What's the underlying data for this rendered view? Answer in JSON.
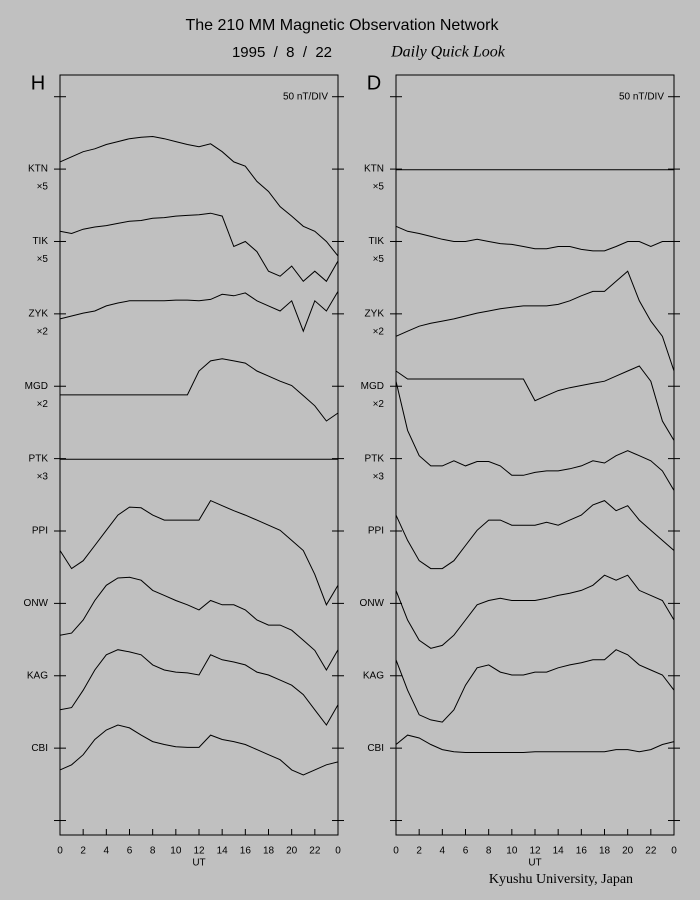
{
  "title": "The 210 MM Magnetic Observation Network",
  "date": "1995  /  8  /  22",
  "subtitle": "Daily Quick Look",
  "credit": "Kyushu University, Japan",
  "chart_data": [
    {
      "type": "line",
      "title": "H",
      "annotation": "50 nT/DIV",
      "xlabel": "UT",
      "color": "#000000",
      "x": [
        0,
        1,
        2,
        3,
        4,
        5,
        6,
        7,
        8,
        9,
        10,
        11,
        12,
        13,
        14,
        15,
        16,
        17,
        18,
        19,
        20,
        21,
        22,
        23,
        24
      ],
      "xlim": [
        0,
        24
      ],
      "xticks": [
        0,
        2,
        4,
        6,
        8,
        10,
        12,
        14,
        16,
        18,
        20,
        22,
        {
          "value": 24,
          "label": "0"
        }
      ],
      "ylim": [
        -0.2,
        10.3
      ],
      "yticks": [
        0,
        1,
        2,
        3,
        4,
        5,
        6,
        7,
        8,
        9,
        10
      ],
      "series": [
        {
          "name": "KTN",
          "gain": "×5",
          "baseline": 9,
          "values": [
            9.1,
            9.17,
            9.24,
            9.28,
            9.34,
            9.38,
            9.42,
            9.44,
            9.45,
            9.42,
            9.38,
            9.34,
            9.31,
            9.35,
            9.24,
            9.1,
            9.04,
            8.83,
            8.69,
            8.48,
            8.35,
            8.21,
            8.14,
            8.0,
            7.8
          ]
        },
        {
          "name": "TIK",
          "gain": "×5",
          "baseline": 8,
          "values": [
            8.14,
            8.11,
            8.17,
            8.2,
            8.22,
            8.25,
            8.28,
            8.29,
            8.32,
            8.33,
            8.35,
            8.36,
            8.37,
            8.39,
            8.35,
            7.93,
            8.0,
            7.86,
            7.59,
            7.52,
            7.66,
            7.45,
            7.59,
            7.45,
            7.73
          ]
        },
        {
          "name": "ZYK",
          "gain": "×2",
          "baseline": 7,
          "values": [
            6.93,
            6.97,
            7.01,
            7.04,
            7.11,
            7.15,
            7.18,
            7.18,
            7.18,
            7.18,
            7.19,
            7.19,
            7.18,
            7.2,
            7.27,
            7.25,
            7.29,
            7.18,
            7.11,
            7.04,
            7.18,
            6.76,
            7.18,
            7.04,
            7.31
          ]
        },
        {
          "name": "MGD",
          "gain": "×2",
          "baseline": 6,
          "values": [
            5.88,
            5.88,
            5.88,
            5.88,
            5.88,
            5.88,
            5.88,
            5.88,
            5.88,
            5.88,
            5.88,
            5.88,
            6.21,
            6.35,
            6.38,
            6.35,
            6.32,
            6.21,
            6.14,
            6.07,
            6.01,
            5.87,
            5.73,
            5.52,
            5.63
          ]
        },
        {
          "name": "PTK",
          "gain": "×3",
          "baseline": 5,
          "values": [
            4.99,
            4.99,
            4.99,
            4.99,
            4.99,
            4.99,
            4.99,
            4.99,
            4.99,
            4.99,
            4.99,
            4.99,
            4.99,
            4.99,
            4.99,
            4.99,
            4.99,
            4.99,
            4.99,
            4.99,
            4.99,
            4.99,
            4.99,
            4.99,
            4.99
          ]
        },
        {
          "name": "PPI",
          "baseline": 4,
          "values": [
            3.73,
            3.48,
            3.59,
            3.8,
            4.01,
            4.22,
            4.33,
            4.32,
            4.22,
            4.15,
            4.15,
            4.15,
            4.15,
            4.42,
            4.35,
            4.28,
            4.22,
            4.15,
            4.08,
            4.01,
            3.87,
            3.73,
            3.4,
            2.98,
            3.25
          ]
        },
        {
          "name": "ONW",
          "baseline": 3,
          "values": [
            2.56,
            2.59,
            2.77,
            3.04,
            3.25,
            3.35,
            3.36,
            3.32,
            3.18,
            3.11,
            3.04,
            2.98,
            2.91,
            3.04,
            2.98,
            2.98,
            2.91,
            2.77,
            2.7,
            2.7,
            2.63,
            2.49,
            2.35,
            2.08,
            2.36
          ]
        },
        {
          "name": "KAG",
          "baseline": 2,
          "values": [
            1.53,
            1.56,
            1.8,
            2.08,
            2.29,
            2.36,
            2.33,
            2.29,
            2.15,
            2.08,
            2.05,
            2.04,
            2.01,
            2.29,
            2.22,
            2.19,
            2.15,
            2.05,
            2.01,
            1.94,
            1.87,
            1.74,
            1.53,
            1.32,
            1.6
          ]
        },
        {
          "name": "CBI",
          "baseline": 1,
          "values": [
            0.7,
            0.77,
            0.91,
            1.12,
            1.25,
            1.32,
            1.28,
            1.18,
            1.09,
            1.05,
            1.02,
            1.01,
            1.01,
            1.18,
            1.12,
            1.09,
            1.05,
            0.98,
            0.91,
            0.84,
            0.7,
            0.63,
            0.7,
            0.77,
            0.81
          ]
        }
      ]
    },
    {
      "type": "line",
      "title": "D",
      "annotation": "50 nT/DIV",
      "xlabel": "UT",
      "color": "#000000",
      "x": [
        0,
        1,
        2,
        3,
        4,
        5,
        6,
        7,
        8,
        9,
        10,
        11,
        12,
        13,
        14,
        15,
        16,
        17,
        18,
        19,
        20,
        21,
        22,
        23,
        24
      ],
      "xlim": [
        0,
        24
      ],
      "xticks": [
        0,
        2,
        4,
        6,
        8,
        10,
        12,
        14,
        16,
        18,
        20,
        22,
        {
          "value": 24,
          "label": "0"
        }
      ],
      "ylim": [
        -0.2,
        10.3
      ],
      "yticks": [
        0,
        1,
        2,
        3,
        4,
        5,
        6,
        7,
        8,
        9,
        10
      ],
      "series": [
        {
          "name": "KTN",
          "gain": "×5",
          "baseline": 9,
          "values": [
            8.99,
            8.99,
            8.99,
            8.99,
            8.99,
            8.99,
            8.99,
            8.99,
            8.99,
            8.99,
            8.99,
            8.99,
            8.99,
            8.99,
            8.99,
            8.99,
            8.99,
            8.99,
            8.99,
            8.99,
            8.99,
            8.99,
            8.99,
            8.99,
            8.99
          ]
        },
        {
          "name": "TIK",
          "gain": "×5",
          "baseline": 8,
          "values": [
            8.21,
            8.14,
            8.11,
            8.07,
            8.03,
            8.0,
            8.0,
            8.03,
            8.0,
            7.97,
            7.96,
            7.93,
            7.9,
            7.9,
            7.93,
            7.93,
            7.89,
            7.87,
            7.87,
            7.93,
            8.0,
            8.0,
            7.93,
            8.0,
            8.0
          ]
        },
        {
          "name": "ZYK",
          "gain": "×2",
          "baseline": 7,
          "values": [
            6.69,
            6.76,
            6.83,
            6.87,
            6.9,
            6.93,
            6.97,
            7.01,
            7.04,
            7.07,
            7.09,
            7.11,
            7.11,
            7.11,
            7.13,
            7.18,
            7.25,
            7.31,
            7.31,
            7.45,
            7.59,
            7.18,
            6.9,
            6.69,
            6.21
          ]
        },
        {
          "name": "MGD",
          "gain": "×2",
          "baseline": 6,
          "values": [
            6.21,
            6.1,
            6.1,
            6.1,
            6.1,
            6.1,
            6.1,
            6.1,
            6.1,
            6.1,
            6.1,
            6.1,
            5.8,
            5.87,
            5.94,
            5.98,
            6.01,
            6.04,
            6.07,
            6.14,
            6.21,
            6.28,
            6.07,
            5.52,
            5.25
          ]
        },
        {
          "name": "PTK",
          "gain": "×3",
          "baseline": 5,
          "values": [
            6.07,
            5.39,
            5.04,
            4.9,
            4.9,
            4.97,
            4.9,
            4.96,
            4.96,
            4.9,
            4.77,
            4.77,
            4.81,
            4.83,
            4.83,
            4.86,
            4.9,
            4.97,
            4.94,
            5.04,
            5.11,
            5.04,
            4.97,
            4.83,
            4.56
          ]
        },
        {
          "name": "PPI",
          "baseline": 4,
          "values": [
            4.22,
            3.87,
            3.59,
            3.48,
            3.48,
            3.59,
            3.8,
            4.01,
            4.15,
            4.15,
            4.08,
            4.08,
            4.08,
            4.12,
            4.08,
            4.15,
            4.22,
            4.36,
            4.42,
            4.28,
            4.35,
            4.15,
            4.01,
            3.87,
            3.73
          ]
        },
        {
          "name": "ONW",
          "baseline": 3,
          "values": [
            3.18,
            2.77,
            2.49,
            2.38,
            2.42,
            2.56,
            2.77,
            2.98,
            3.04,
            3.07,
            3.04,
            3.04,
            3.04,
            3.07,
            3.11,
            3.14,
            3.18,
            3.25,
            3.39,
            3.32,
            3.39,
            3.18,
            3.11,
            3.04,
            2.77
          ]
        },
        {
          "name": "KAG",
          "baseline": 2,
          "values": [
            2.22,
            1.8,
            1.46,
            1.39,
            1.36,
            1.53,
            1.87,
            2.11,
            2.15,
            2.05,
            2.01,
            2.01,
            2.05,
            2.05,
            2.11,
            2.15,
            2.18,
            2.22,
            2.22,
            2.36,
            2.29,
            2.15,
            2.08,
            2.01,
            1.8
          ]
        },
        {
          "name": "CBI",
          "baseline": 1,
          "values": [
            1.05,
            1.18,
            1.14,
            1.05,
            0.98,
            0.95,
            0.94,
            0.94,
            0.94,
            0.94,
            0.94,
            0.94,
            0.95,
            0.95,
            0.95,
            0.95,
            0.95,
            0.95,
            0.95,
            0.98,
            0.98,
            0.95,
            0.98,
            1.05,
            1.09
          ]
        }
      ]
    }
  ]
}
